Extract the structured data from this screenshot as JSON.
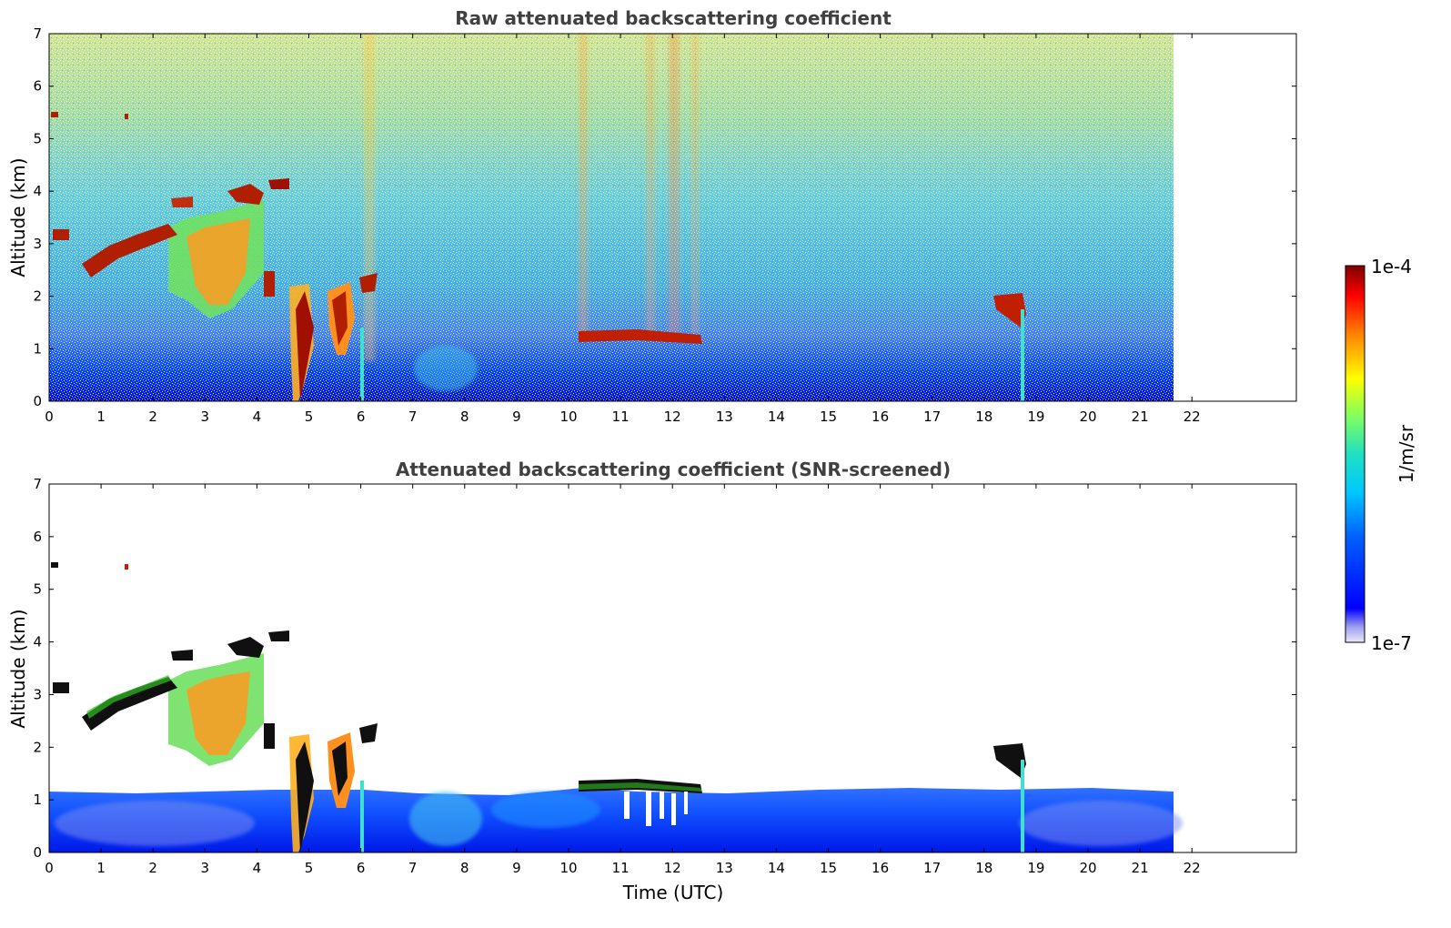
{
  "chart_data": [
    {
      "type": "heatmap",
      "title": "Raw attenuated backscattering coefficient",
      "xlabel": "",
      "ylabel": "Altitude (km)",
      "xlim": [
        0,
        24
      ],
      "ylim": [
        0,
        7
      ],
      "x_ticks": [
        "0",
        "1",
        "2",
        "3",
        "4",
        "5",
        "6",
        "7",
        "8",
        "9",
        "10",
        "11",
        "12",
        "13",
        "14",
        "15",
        "16",
        "17",
        "18",
        "19",
        "20",
        "21",
        "22"
      ],
      "y_ticks": [
        "0",
        "1",
        "2",
        "3",
        "4",
        "5",
        "6",
        "7"
      ],
      "data_extent_x": [
        0,
        21.6
      ],
      "scale": "log",
      "features": [
        {
          "x": [
            0.6,
            2.4
          ],
          "y": [
            2.2,
            3.3
          ],
          "level": "high"
        },
        {
          "x": [
            2.6,
            3.6
          ],
          "y": [
            1.8,
            3.6
          ],
          "level": "medium"
        },
        {
          "x": [
            3.5,
            4.1
          ],
          "y": [
            3.7,
            4.1
          ],
          "level": "high"
        },
        {
          "x": [
            4.7,
            4.9
          ],
          "y": [
            0,
            2.2
          ],
          "level": "high"
        },
        {
          "x": [
            5.4,
            5.8
          ],
          "y": [
            0.8,
            2.3
          ],
          "level": "high"
        },
        {
          "x": [
            6.0,
            6.3
          ],
          "y": [
            0,
            2.4
          ],
          "level": "high"
        },
        {
          "x": [
            10.2,
            12.5
          ],
          "y": [
            1.1,
            1.4
          ],
          "level": "high"
        },
        {
          "x": [
            18.0,
            18.7
          ],
          "y": [
            0,
            2.0
          ],
          "level": "high"
        }
      ]
    },
    {
      "type": "heatmap",
      "title": "Attenuated backscattering coefficient (SNR-screened)",
      "xlabel": "Time (UTC)",
      "ylabel": "Altitude (km)",
      "xlim": [
        0,
        24
      ],
      "ylim": [
        0,
        7
      ],
      "x_ticks": [
        "0",
        "1",
        "2",
        "3",
        "4",
        "5",
        "6",
        "7",
        "8",
        "9",
        "10",
        "11",
        "12",
        "13",
        "14",
        "15",
        "16",
        "17",
        "18",
        "19",
        "20",
        "21",
        "22"
      ],
      "y_ticks": [
        "0",
        "1",
        "2",
        "3",
        "4",
        "5",
        "6",
        "7"
      ],
      "data_extent_x": [
        0,
        21.6
      ],
      "scale": "log",
      "features": [
        {
          "x": [
            0,
            21.6
          ],
          "y": [
            0,
            1.0
          ],
          "level": "low"
        },
        {
          "x": [
            0.6,
            2.4
          ],
          "y": [
            2.2,
            3.3
          ],
          "level": "high"
        },
        {
          "x": [
            2.6,
            3.6
          ],
          "y": [
            1.8,
            3.6
          ],
          "level": "medium"
        },
        {
          "x": [
            3.5,
            4.1
          ],
          "y": [
            3.7,
            4.1
          ],
          "level": "high"
        },
        {
          "x": [
            10.2,
            12.5
          ],
          "y": [
            1.1,
            1.4
          ],
          "level": "high"
        },
        {
          "x": [
            18.0,
            18.7
          ],
          "y": [
            0,
            2.0
          ],
          "level": "high"
        }
      ]
    }
  ],
  "colorbar": {
    "label": "1/m/sr",
    "max_label": "1e-4",
    "min_label": "1e-7",
    "range": [
      1e-07,
      0.0001
    ],
    "scale": "log",
    "colormap": "jet"
  }
}
